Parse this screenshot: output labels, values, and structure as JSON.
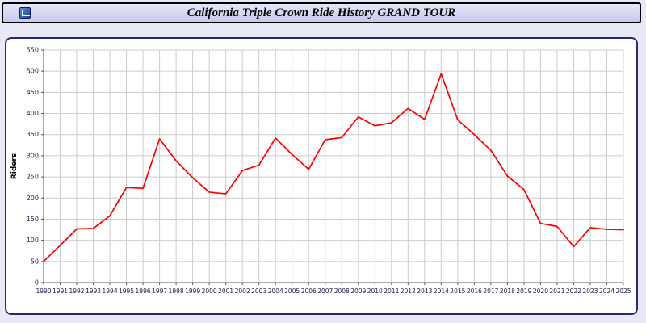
{
  "window": {
    "title_bar": "application title bar"
  },
  "icons": {
    "app_icon": "blue-app-window-icon"
  },
  "colors": {
    "page_background": "#e9e9f6",
    "panel_border": "#2a2a72",
    "plot_background": "#ffffff"
  },
  "chart_data": {
    "type": "line",
    "title": "California Triple Crown Ride History GRAND TOUR",
    "xlabel": "",
    "ylabel": "Riders",
    "x": [
      1990,
      1991,
      1992,
      1993,
      1994,
      1995,
      1996,
      1997,
      1998,
      1999,
      2000,
      2001,
      2002,
      2003,
      2004,
      2005,
      2006,
      2007,
      2008,
      2009,
      2010,
      2011,
      2012,
      2013,
      2014,
      2015,
      2016,
      2017,
      2018,
      2019,
      2020,
      2021,
      2022,
      2023,
      2024,
      2025
    ],
    "values": [
      50,
      88,
      127,
      128,
      158,
      225,
      223,
      340,
      288,
      248,
      214,
      210,
      265,
      278,
      342,
      303,
      268,
      338,
      343,
      392,
      371,
      378,
      412,
      386,
      494,
      385,
      350,
      313,
      252,
      220,
      140,
      133,
      85,
      130,
      126,
      125
    ],
    "ylim": [
      0,
      550
    ],
    "ytick_step": 50,
    "grid": true,
    "legend": "none",
    "line_color": "#ff0000",
    "grid_color": "#cccccc",
    "axis_color": "#555555",
    "tick_color": "#1a1a4e"
  }
}
